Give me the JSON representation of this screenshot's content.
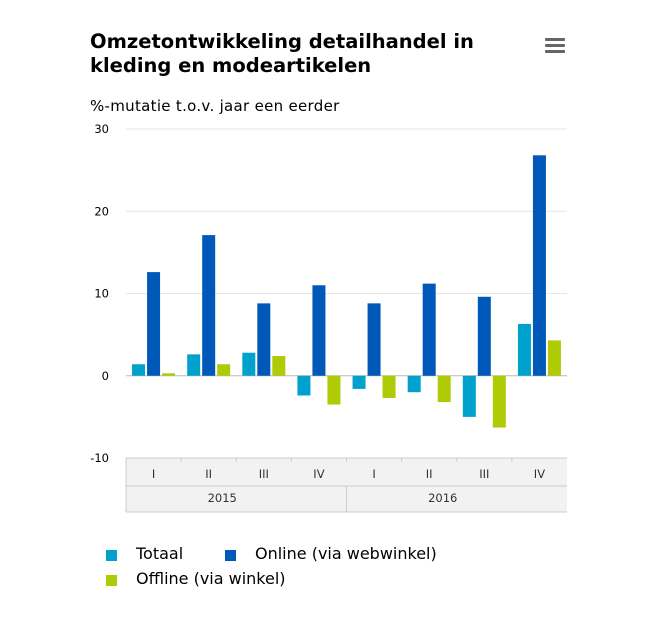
{
  "title": "Omzetontwikkeling detailhandel in kleding en modeartikelen",
  "menu_icon": "hamburger-menu-icon",
  "chart_data": {
    "type": "bar",
    "title": "Omzetontwikkeling detailhandel in kleding en modeartikelen",
    "ylabel": "%-mutatie t.o.v. jaar een eerder",
    "xlabel": "",
    "ylim": [
      -10,
      30
    ],
    "yticks": [
      -10,
      0,
      10,
      20,
      30
    ],
    "grid": true,
    "legend_position": "bottom",
    "categories": [
      "I",
      "II",
      "III",
      "IV",
      "I",
      "II",
      "III",
      "IV"
    ],
    "groups": [
      {
        "label": "2015",
        "categories": [
          "I",
          "II",
          "III",
          "IV"
        ]
      },
      {
        "label": "2016",
        "categories": [
          "I",
          "II",
          "III",
          "IV"
        ]
      }
    ],
    "series": [
      {
        "name": "Totaal",
        "color": "#00a1cd",
        "values": [
          1.4,
          2.6,
          2.8,
          -2.4,
          -1.6,
          -2.0,
          -5.0,
          6.3
        ]
      },
      {
        "name": "Online (via webwinkel)",
        "color": "#0058b8",
        "values": [
          12.6,
          17.1,
          8.8,
          11.0,
          8.8,
          11.2,
          9.6,
          26.8
        ]
      },
      {
        "name": "Offline (via winkel)",
        "color": "#afcb05",
        "values": [
          0.3,
          1.4,
          2.4,
          -3.5,
          -2.7,
          -3.2,
          -6.3,
          4.3
        ]
      }
    ]
  }
}
